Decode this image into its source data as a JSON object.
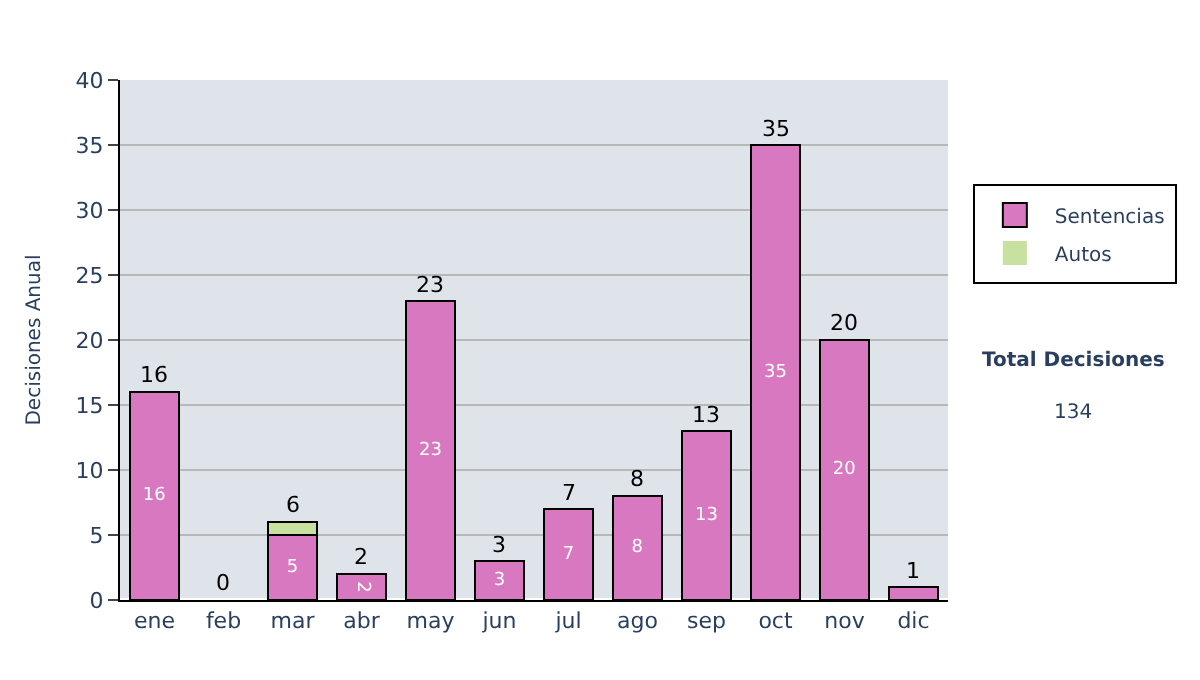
{
  "chart_data": {
    "type": "bar",
    "stacked": true,
    "ylabel": "Decisiones Anual",
    "categories": [
      "ene",
      "feb",
      "mar",
      "abr",
      "may",
      "jun",
      "jul",
      "ago",
      "sep",
      "oct",
      "nov",
      "dic"
    ],
    "series": [
      {
        "name": "Sentencias",
        "color": "#d878c0",
        "values": [
          16,
          0,
          5,
          2,
          23,
          3,
          7,
          8,
          13,
          35,
          20,
          1
        ],
        "value_labels": [
          "16",
          null,
          "5",
          "2",
          "23",
          "3",
          "7",
          "8",
          "13",
          "35",
          "20",
          null
        ]
      },
      {
        "name": "Autos",
        "color": "#c8e0a0",
        "values": [
          0,
          0,
          1,
          0,
          0,
          0,
          0,
          0,
          0,
          0,
          0,
          0
        ]
      }
    ],
    "totals": [
      "16",
      "0",
      "6",
      "2",
      "23",
      "3",
      "7",
      "8",
      "13",
      "35",
      "20",
      "1"
    ],
    "ylim": [
      0,
      40
    ],
    "yticks": [
      0,
      5,
      10,
      15,
      20,
      25,
      30,
      35,
      40
    ],
    "grid": "y",
    "legend": "right",
    "annotations": [
      "Total Decisiones",
      "134"
    ]
  }
}
